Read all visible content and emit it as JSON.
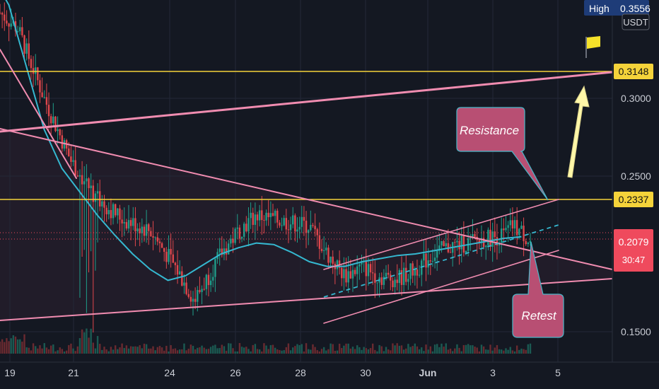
{
  "colors": {
    "background": "#141822",
    "grid": "#232838",
    "up": "#1f9e8a",
    "down": "#e0474c",
    "ma": "#35b8d0",
    "trend": "#f08cb0",
    "level": "#f5d33a",
    "callout": "#b84f73",
    "callout_border": "#4ab7c9",
    "arrow": "#fff7a8",
    "price_tag": "#ef4a5d",
    "high_tag": "#1e3c78",
    "flag": "#f5e12a"
  },
  "header": {
    "high_label": "High",
    "high_value": "0.3556",
    "currency": "USDT"
  },
  "levels": {
    "upper": "0.3148",
    "lower": "0.2337"
  },
  "current": {
    "price": "0.2079",
    "countdown": "30:47"
  },
  "annotations": {
    "resistance": "Resistance",
    "retest": "Retest"
  },
  "flag_icon": "flag-icon",
  "arrow_icon": "up-arrow-icon",
  "chart_data": {
    "type": "candlestick",
    "title": "",
    "x_ticks": [
      "19",
      "21",
      "24",
      "26",
      "28",
      "30",
      "Jun",
      "3",
      "5"
    ],
    "y_ticks": [
      0.3,
      0.25,
      0.15
    ],
    "ylim": [
      0.13,
      0.37
    ],
    "price_path": [
      [
        0,
        0.355
      ],
      [
        2,
        0.345
      ],
      [
        5,
        0.3
      ],
      [
        8,
        0.26
      ],
      [
        11,
        0.235
      ],
      [
        14,
        0.222
      ],
      [
        17,
        0.215
      ],
      [
        20,
        0.19
      ],
      [
        22,
        0.17
      ],
      [
        23,
        0.18
      ],
      [
        25,
        0.2
      ],
      [
        27,
        0.215
      ],
      [
        29,
        0.225
      ],
      [
        31,
        0.222
      ],
      [
        33,
        0.22
      ],
      [
        35,
        0.218
      ],
      [
        37,
        0.2
      ],
      [
        39,
        0.186
      ],
      [
        41,
        0.192
      ],
      [
        43,
        0.185
      ],
      [
        45,
        0.184
      ],
      [
        47,
        0.19
      ],
      [
        49,
        0.2
      ],
      [
        51,
        0.205
      ],
      [
        53,
        0.207
      ],
      [
        55,
        0.21
      ],
      [
        57,
        0.212
      ],
      [
        58,
        0.218
      ],
      [
        59,
        0.214
      ],
      [
        60,
        0.208
      ]
    ],
    "ma_path": [
      [
        0,
        0.37
      ],
      [
        1,
        0.36
      ],
      [
        3,
        0.32
      ],
      [
        5,
        0.28
      ],
      [
        7,
        0.255
      ],
      [
        9,
        0.24
      ],
      [
        11,
        0.225
      ],
      [
        13,
        0.212
      ],
      [
        15,
        0.2
      ],
      [
        17,
        0.19
      ],
      [
        19,
        0.183
      ],
      [
        21,
        0.186
      ],
      [
        23,
        0.193
      ],
      [
        25,
        0.2
      ],
      [
        27,
        0.204
      ],
      [
        29,
        0.207
      ],
      [
        31,
        0.206
      ],
      [
        33,
        0.201
      ],
      [
        35,
        0.195
      ],
      [
        37,
        0.192
      ],
      [
        39,
        0.192
      ],
      [
        41,
        0.195
      ],
      [
        43,
        0.197
      ],
      [
        45,
        0.199
      ],
      [
        47,
        0.2
      ],
      [
        49,
        0.202
      ],
      [
        51,
        0.204
      ],
      [
        53,
        0.206
      ],
      [
        55,
        0.208
      ],
      [
        57,
        0.21
      ],
      [
        59,
        0.211
      ]
    ],
    "legend": "none",
    "grid": true
  }
}
